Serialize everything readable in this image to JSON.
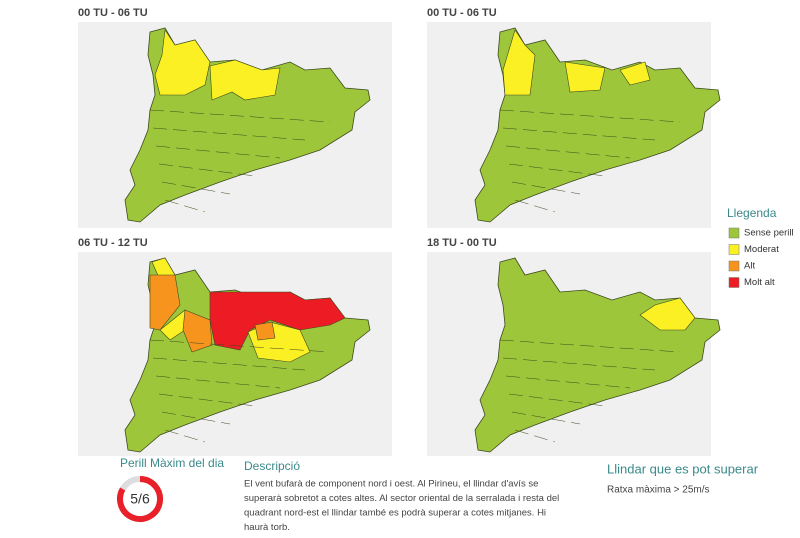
{
  "panels": [
    {
      "title": "00 TU - 06 TU"
    },
    {
      "title": "00 TU - 06 TU"
    },
    {
      "title": "06 TU - 12 TU"
    },
    {
      "title": "18 TU - 00 TU"
    }
  ],
  "legend": {
    "title": "Llegenda",
    "items": [
      {
        "label": "Sense perill",
        "color": "#9ec63a"
      },
      {
        "label": "Moderat",
        "color": "#fbf023"
      },
      {
        "label": "Alt",
        "color": "#f7941d"
      },
      {
        "label": "Molt alt",
        "color": "#ed1c24"
      }
    ]
  },
  "max_danger": {
    "title": "Perill Màxim del dia",
    "value": "5/6"
  },
  "description": {
    "title": "Descripció",
    "lines": [
      "El vent bufarà de component nord i oest. Al Pirineu, el llindar d'avís se",
      "superarà sobretot a cotes altes. Al sector oriental de la serralada i resta del",
      "quadrant nord-est el llindar també es podrà superar a cotes mitjanes. Hi",
      "haurà torb."
    ]
  },
  "threshold": {
    "title": "Llindar que es pot superar",
    "text": "Ratxa màxima > 25m/s"
  }
}
